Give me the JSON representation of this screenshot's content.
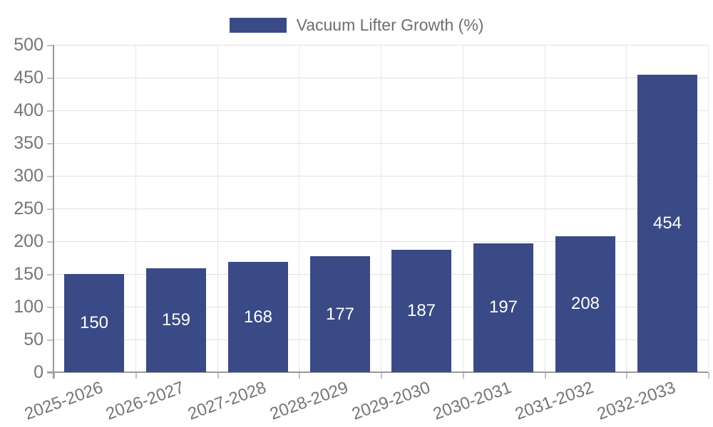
{
  "legend": {
    "label": "Vacuum Lifter Growth (%)"
  },
  "chart_data": {
    "type": "bar",
    "title": "",
    "categories": [
      "2025-2026",
      "2026-2027",
      "2027-2028",
      "2028-2029",
      "2029-2030",
      "2030-2031",
      "2031-2032",
      "2032-2033"
    ],
    "series": [
      {
        "name": "Vacuum Lifter Growth (%)",
        "values": [
          150,
          159,
          168,
          177,
          187,
          197,
          208,
          454
        ]
      }
    ],
    "value_labels": [
      "150",
      "159",
      "168",
      "177",
      "187",
      "197",
      "208",
      "454"
    ],
    "value_label_position": "inside-center",
    "xlabel": "",
    "ylabel": "",
    "ylim": [
      0,
      500
    ],
    "ytick_interval": 50,
    "yticks": [
      "0",
      "50",
      "100",
      "150",
      "200",
      "250",
      "300",
      "350",
      "400",
      "450",
      "500"
    ],
    "grid": true,
    "legend_position": "top-center",
    "x_label_rotation_deg": -20
  },
  "colors": {
    "bar": "#3a4a86",
    "grid_h": "#e2e2e2",
    "grid_v": "#e6e6e6",
    "axis": "#999999",
    "tick": "#c2c2c2",
    "tick_label": "#757575",
    "legend_text": "#6e6e6e",
    "value_label": "#ffffff",
    "background": "#ffffff"
  }
}
